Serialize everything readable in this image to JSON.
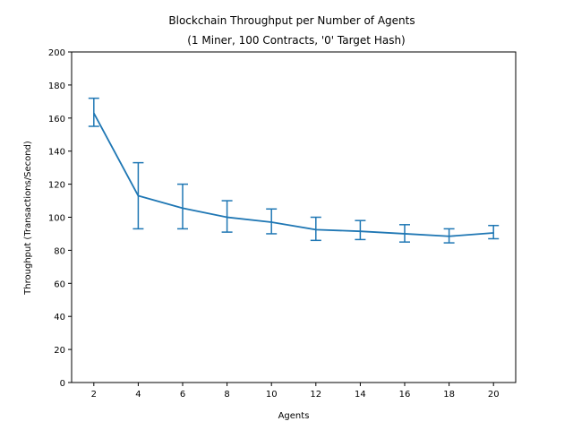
{
  "chart_data": {
    "type": "line",
    "title": "Blockchain Throughput per Number of Agents",
    "subtitle": "(1 Miner, 100 Contracts, '0' Target Hash)",
    "xlabel": "Agents",
    "ylabel": "Throughput (Transactions/Second)",
    "x": [
      2,
      4,
      6,
      8,
      10,
      12,
      14,
      16,
      18,
      20
    ],
    "series": [
      {
        "values": [
          163,
          113,
          105.5,
          100,
          97,
          92.5,
          91.5,
          90,
          88.5,
          90.5
        ],
        "error_low": [
          155,
          93,
          93,
          91,
          90,
          86,
          86.5,
          85,
          84.5,
          87
        ],
        "error_high": [
          172,
          133,
          120,
          110,
          105,
          100,
          98,
          95.5,
          93,
          95
        ]
      }
    ],
    "xlim": [
      1,
      21
    ],
    "ylim": [
      0,
      200
    ],
    "xticks": [
      2,
      4,
      6,
      8,
      10,
      12,
      14,
      16,
      18,
      20
    ],
    "yticks": [
      0,
      20,
      40,
      60,
      80,
      100,
      120,
      140,
      160,
      180,
      200
    ],
    "grid": false,
    "colors": {
      "line": "#1f77b4",
      "axes": "#000000",
      "background": "#ffffff"
    }
  }
}
